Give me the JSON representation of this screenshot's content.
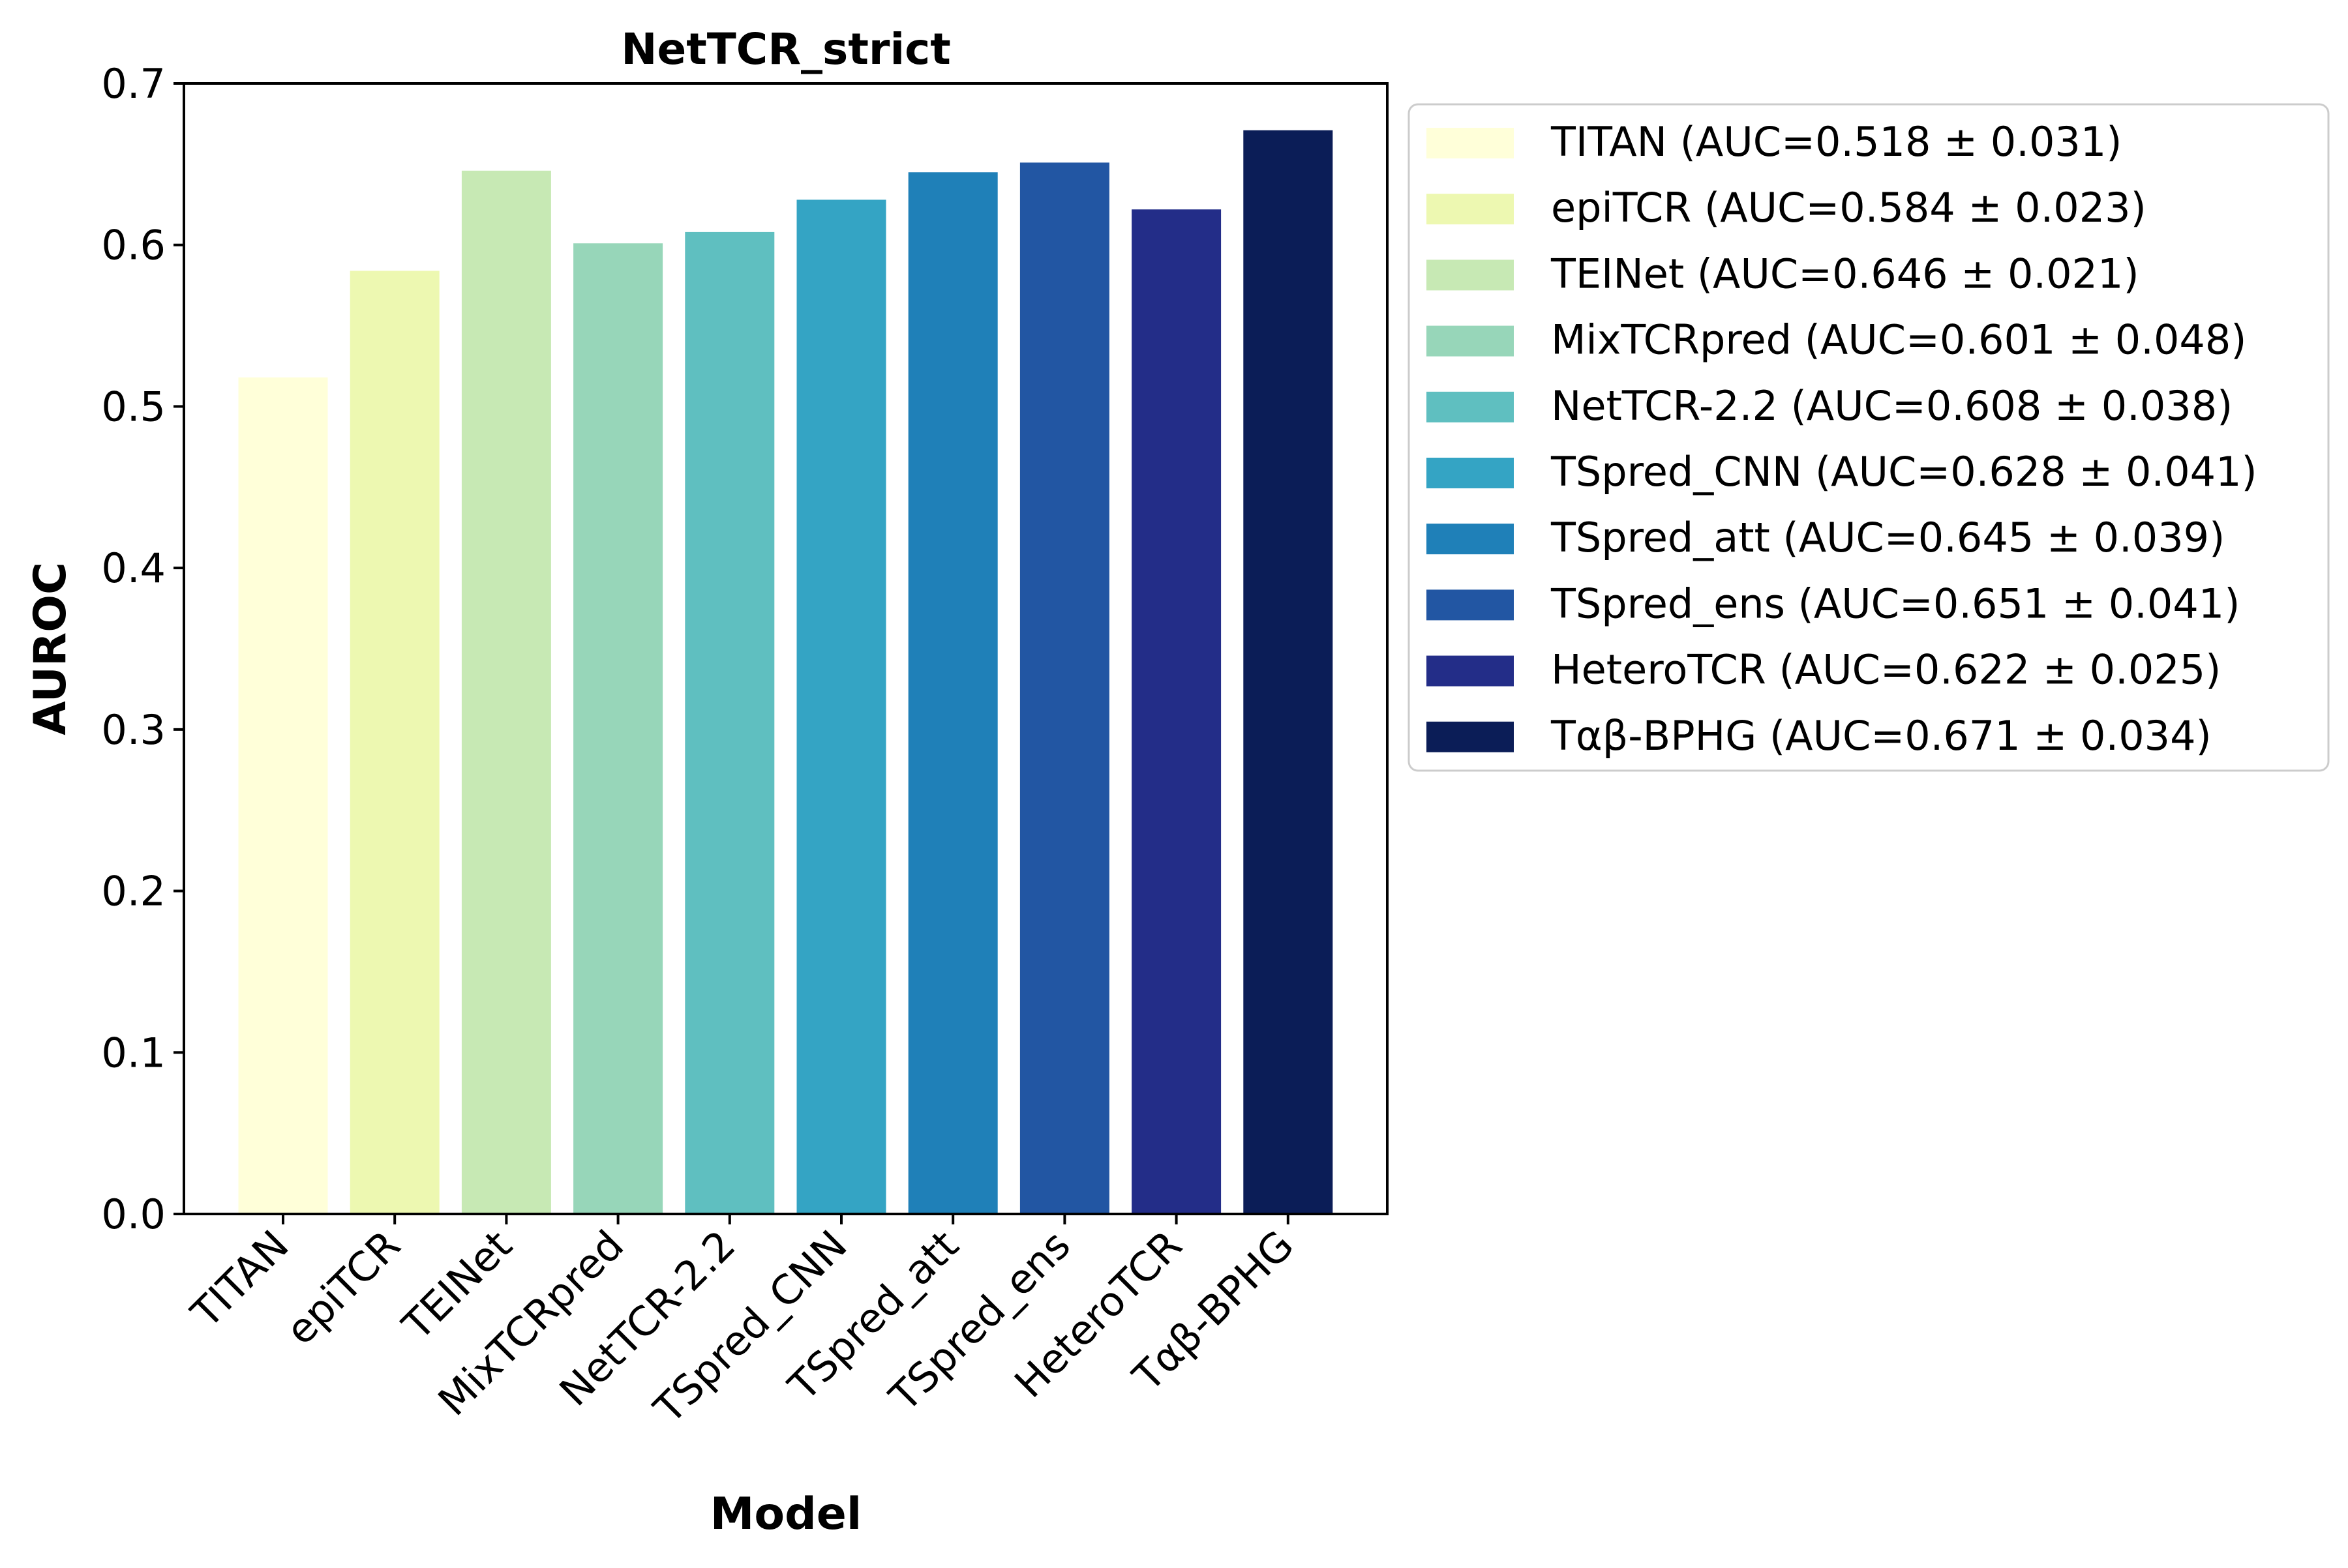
{
  "chart_data": {
    "type": "bar",
    "title": "NetTCR_strict",
    "xlabel": "Model",
    "ylabel": "AUROC",
    "ylim": [
      0,
      0.7
    ],
    "yticks": [
      "0.0",
      "0.1",
      "0.2",
      "0.3",
      "0.4",
      "0.5",
      "0.6",
      "0.7"
    ],
    "categories": [
      "TITAN",
      "epiTCR",
      "TEINet",
      "MixTCRpred",
      "NetTCR-2.2",
      "TSpred_CNN",
      "TSpred_att",
      "TSpred_ens",
      "HeteroTCR",
      "Tαβ-BPHG"
    ],
    "values": [
      0.518,
      0.584,
      0.646,
      0.601,
      0.608,
      0.628,
      0.645,
      0.651,
      0.622,
      0.671
    ],
    "colors": [
      "#ffffd9",
      "#edf8b1",
      "#c7e9b4",
      "#97d6b9",
      "#5fbfc0",
      "#34a4c4",
      "#1f80b8",
      "#2256a3",
      "#232d88",
      "#0b1d57"
    ],
    "legend": {
      "placement": "outside-right-top",
      "entries": [
        "TITAN (AUC=0.518 ± 0.031)",
        "epiTCR (AUC=0.584 ± 0.023)",
        "TEINet (AUC=0.646 ± 0.021)",
        "MixTCRpred (AUC=0.601 ± 0.048)",
        "NetTCR-2.2 (AUC=0.608 ± 0.038)",
        "TSpred_CNN (AUC=0.628 ± 0.041)",
        "TSpred_att (AUC=0.645 ± 0.039)",
        "TSpred_ens (AUC=0.651 ± 0.041)",
        "HeteroTCR (AUC=0.622 ± 0.025)",
        "Tαβ-BPHG (AUC=0.671 ± 0.034)"
      ]
    },
    "grid": false
  }
}
